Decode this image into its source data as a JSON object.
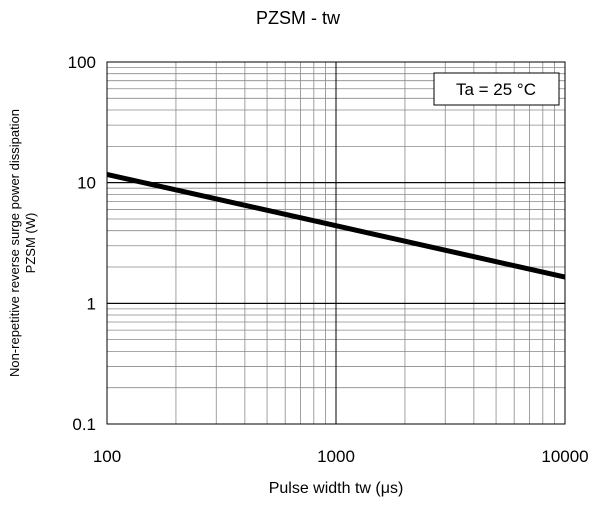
{
  "chart_data": {
    "type": "line",
    "title": "PZSM - tw",
    "xlabel": "Pulse width  tw (μs)",
    "ylabel_line1": "Non-repetitive reverse surge power dissipation",
    "ylabel_line2": "PZSM (W)",
    "xscale": "log",
    "yscale": "log",
    "xlim": [
      100,
      10000
    ],
    "ylim": [
      0.1,
      100
    ],
    "x_ticks": [
      "100",
      "1000",
      "10000"
    ],
    "y_ticks": [
      "0.1",
      "1",
      "10",
      "100"
    ],
    "grid": true,
    "annotation": "Ta = 25 °C",
    "series": [
      {
        "x": [
          100,
          1000,
          10000
        ],
        "y": [
          11.7,
          4.4,
          1.65
        ]
      }
    ]
  }
}
